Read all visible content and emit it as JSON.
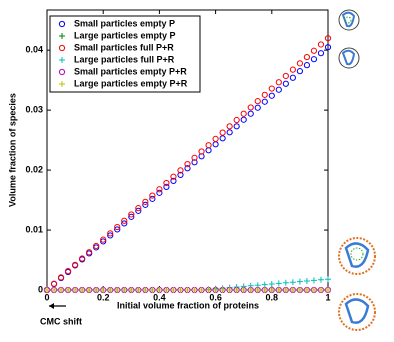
{
  "chart_data": {
    "type": "scatter",
    "xlabel": "Initial volume fraction of proteins",
    "ylabel": "Volume fraction of species",
    "annotation": "CMC shift",
    "xlim": [
      0,
      1
    ],
    "ylim": [
      0,
      0.0467
    ],
    "xticks": [
      0,
      0.2,
      0.4,
      0.6,
      0.8,
      1
    ],
    "yticks": [
      0,
      0.01,
      0.02,
      0.03,
      0.04
    ],
    "legend": "upper-left",
    "x": [
      0,
      0.025,
      0.05,
      0.075,
      0.1,
      0.125,
      0.15,
      0.175,
      0.2,
      0.225,
      0.25,
      0.275,
      0.3,
      0.325,
      0.35,
      0.375,
      0.4,
      0.425,
      0.45,
      0.475,
      0.5,
      0.525,
      0.55,
      0.575,
      0.6,
      0.625,
      0.65,
      0.675,
      0.7,
      0.725,
      0.75,
      0.775,
      0.8,
      0.825,
      0.85,
      0.875,
      0.9,
      0.925,
      0.95,
      0.975,
      1
    ],
    "series": [
      {
        "name": "Small particles empty P",
        "color": "#0000ff",
        "marker": "o",
        "values": [
          0,
          0.001,
          0.002,
          0.003,
          0.0041,
          0.0051,
          0.0061,
          0.0071,
          0.0081,
          0.0091,
          0.0101,
          0.0111,
          0.0122,
          0.0132,
          0.0142,
          0.0152,
          0.0162,
          0.0172,
          0.0182,
          0.0192,
          0.0203,
          0.0213,
          0.0223,
          0.0233,
          0.0243,
          0.0253,
          0.0263,
          0.0273,
          0.0284,
          0.0294,
          0.0304,
          0.0314,
          0.0324,
          0.0334,
          0.0344,
          0.0354,
          0.0365,
          0.0375,
          0.0385,
          0.0395,
          0.0405
        ]
      },
      {
        "name": "Large particles empty P",
        "color": "#008000",
        "marker": "+",
        "values": [
          0,
          0,
          0,
          0,
          0,
          0,
          0,
          0,
          0,
          0,
          0,
          0,
          0,
          0,
          0,
          0,
          0,
          0,
          0,
          0,
          0,
          0,
          0,
          0,
          0,
          0,
          0,
          0,
          0,
          0,
          0,
          0,
          0,
          0,
          0,
          0,
          0,
          0,
          0,
          0,
          0
        ]
      },
      {
        "name": "Small particles full P+R",
        "color": "#ff0000",
        "marker": "o",
        "values": [
          0,
          0.00105,
          0.0021,
          0.00315,
          0.0042,
          0.00525,
          0.0063,
          0.00735,
          0.0084,
          0.00945,
          0.0105,
          0.01155,
          0.0126,
          0.01365,
          0.0147,
          0.01575,
          0.0168,
          0.01785,
          0.0189,
          0.01995,
          0.021,
          0.02205,
          0.0231,
          0.02415,
          0.0252,
          0.02625,
          0.0273,
          0.02835,
          0.0294,
          0.03045,
          0.0315,
          0.03255,
          0.0336,
          0.03465,
          0.0357,
          0.03675,
          0.0378,
          0.03885,
          0.0399,
          0.04095,
          0.042
        ]
      },
      {
        "name": "Large particles full P+R",
        "color": "#00bfbf",
        "marker": "+",
        "values": [
          0,
          0,
          0,
          0,
          0,
          0,
          0,
          0,
          0,
          0,
          0,
          0,
          0,
          0,
          0,
          0,
          0,
          0,
          0,
          0,
          0,
          0,
          0,
          0.0001,
          0.0002,
          0.0003,
          0.0004,
          0.0005,
          0.0006,
          0.0007,
          0.0008,
          0.0009,
          0.001,
          0.0011,
          0.0012,
          0.0013,
          0.0014,
          0.0015,
          0.0016,
          0.0017,
          0.0018
        ]
      },
      {
        "name": "Small particles empty P+R",
        "color": "#bf00bf",
        "marker": "o",
        "values": [
          0,
          0,
          0,
          0,
          0,
          0,
          0,
          0,
          0,
          0,
          0,
          0,
          0,
          0,
          0,
          0,
          0,
          0,
          0,
          0,
          0,
          0,
          0,
          0,
          0,
          0,
          0,
          0,
          0,
          0,
          0,
          0,
          0,
          0,
          0,
          0,
          0,
          0,
          0,
          0,
          0
        ]
      },
      {
        "name": "Large particles empty P+R",
        "color": "#bfbf00",
        "marker": "+",
        "values": [
          0,
          0,
          0,
          0,
          0,
          0,
          0,
          0,
          0,
          0,
          0,
          0,
          0,
          0,
          0,
          0,
          0,
          0,
          0,
          0,
          0,
          0,
          0,
          0,
          0,
          0,
          0,
          0,
          0,
          0,
          0,
          0,
          0,
          0,
          0,
          0,
          0,
          0,
          0,
          0,
          0
        ]
      }
    ]
  }
}
